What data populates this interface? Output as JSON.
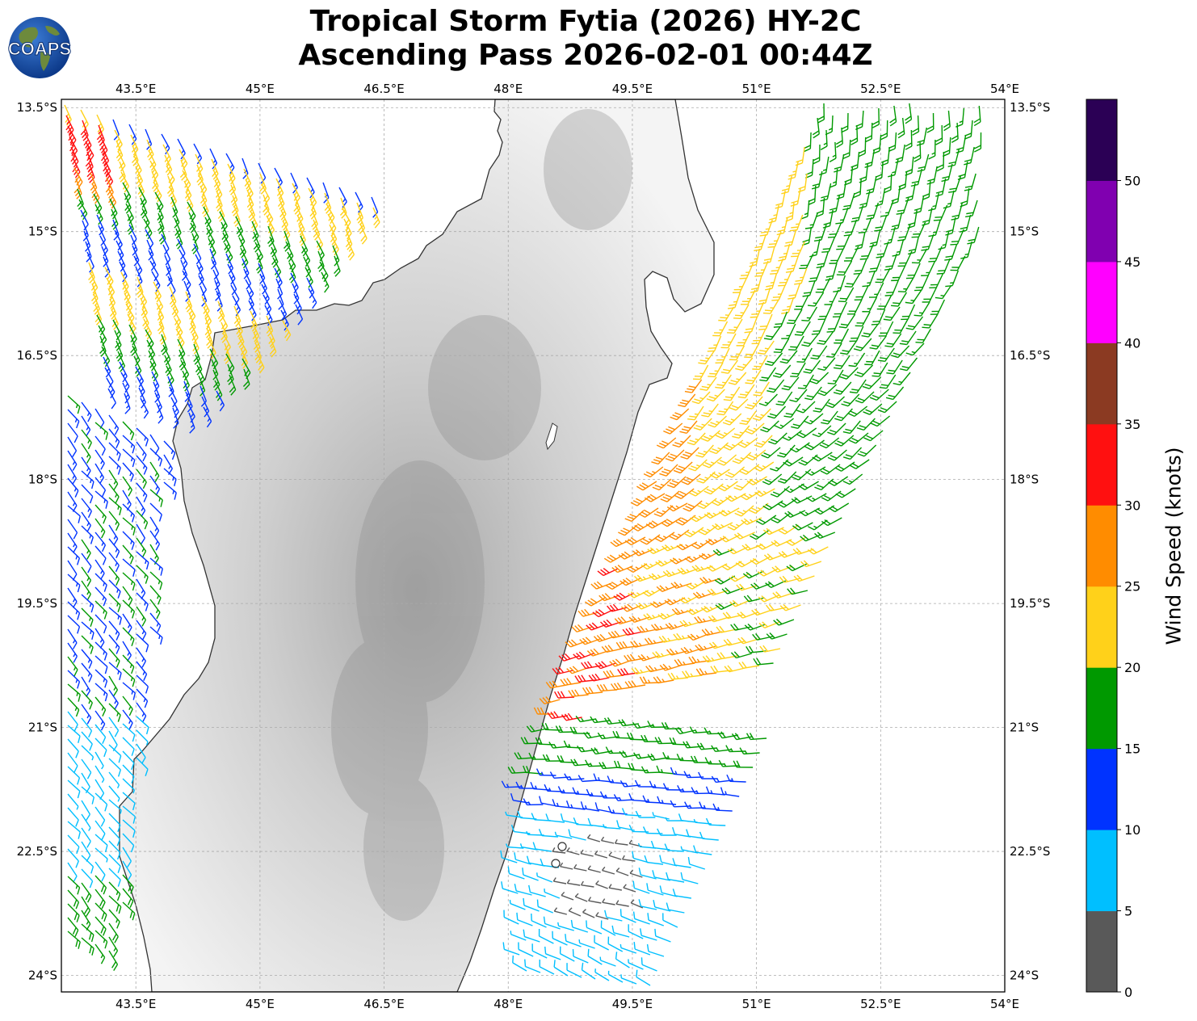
{
  "title": {
    "line1": "Tropical Storm Fytia (2026) HY-2C",
    "line2": "Ascending Pass 2026-02-01 00:44Z"
  },
  "logo": {
    "text": "COAPS"
  },
  "map": {
    "lon_range": [
      42.6,
      54.0
    ],
    "lat_range": [
      -24.2,
      -13.4
    ],
    "lon_ticks": [
      "43.5°E",
      "45°E",
      "46.5°E",
      "48°E",
      "49.5°E",
      "51°E",
      "52.5°E",
      "54°E"
    ],
    "lat_ticks": [
      "13.5°S",
      "15°S",
      "16.5°S",
      "18°S",
      "19.5°S",
      "21°S",
      "22.5°S",
      "24°S"
    ],
    "gridlines": true,
    "land": "Madagascar (grayscale topography)",
    "ocean_color": "#ffffff"
  },
  "colorbar": {
    "label": "Wind Speed (knots)",
    "ticks": [
      "0",
      "5",
      "10",
      "15",
      "20",
      "25",
      "30",
      "35",
      "40",
      "45",
      "50"
    ],
    "bins": [
      {
        "range": "0-5",
        "color": "#595959"
      },
      {
        "range": "5-10",
        "color": "#00bfff"
      },
      {
        "range": "10-15",
        "color": "#0033ff"
      },
      {
        "range": "15-20",
        "color": "#009900"
      },
      {
        "range": "20-25",
        "color": "#ffd11a"
      },
      {
        "range": "25-30",
        "color": "#ff8c00"
      },
      {
        "range": "30-35",
        "color": "#ff1010"
      },
      {
        "range": "35-40",
        "color": "#8b3a22"
      },
      {
        "range": "40-45",
        "color": "#ff00ff"
      },
      {
        "range": "45-50",
        "color": "#8000b0"
      },
      {
        "range": "50+",
        "color": "#2b0055"
      }
    ]
  },
  "wind_barbs": {
    "units": "knots",
    "swaths": [
      {
        "name": "west-north",
        "speed_range_kt": [
          10,
          35
        ]
      },
      {
        "name": "west-south",
        "speed_range_kt": [
          5,
          20
        ]
      },
      {
        "name": "east",
        "speed_range_kt": [
          0,
          35
        ]
      }
    ]
  }
}
